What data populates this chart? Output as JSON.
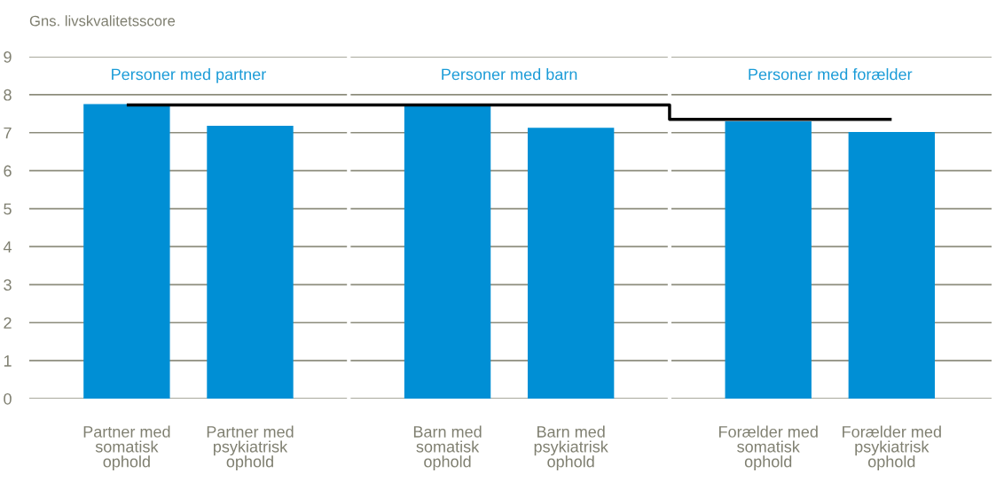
{
  "chart_data": {
    "type": "bar",
    "ylabel": "Gns. livskvalitetsscore",
    "categories": [
      "Partner med\nsomatisk\nophold",
      "Partner med\npsykiatrisk\nophold",
      "Barn med\nsomatisk\nophold",
      "Barn med\npsykiatrisk\nophold",
      "Forælder med\nsomatisk\nophold",
      "Forælder med\npsykiatrisk\nophold"
    ],
    "series": [
      {
        "color": "#008fd5",
        "values": [
          7.75,
          7.18,
          7.74,
          7.13,
          7.3,
          7.02
        ]
      },
      {
        "type": "step",
        "color": "#000000",
        "values": [
          7.73,
          7.73,
          7.73,
          7.73,
          7.35,
          7.35
        ]
      }
    ],
    "annotations": [
      "Personer med partner",
      "Personer med barn",
      "Personer med forælder"
    ],
    "ylim": [
      0,
      9
    ],
    "yticks": [
      0,
      1,
      2,
      3,
      4,
      5,
      6,
      7,
      8,
      9
    ],
    "grid": "y",
    "legend": false
  }
}
